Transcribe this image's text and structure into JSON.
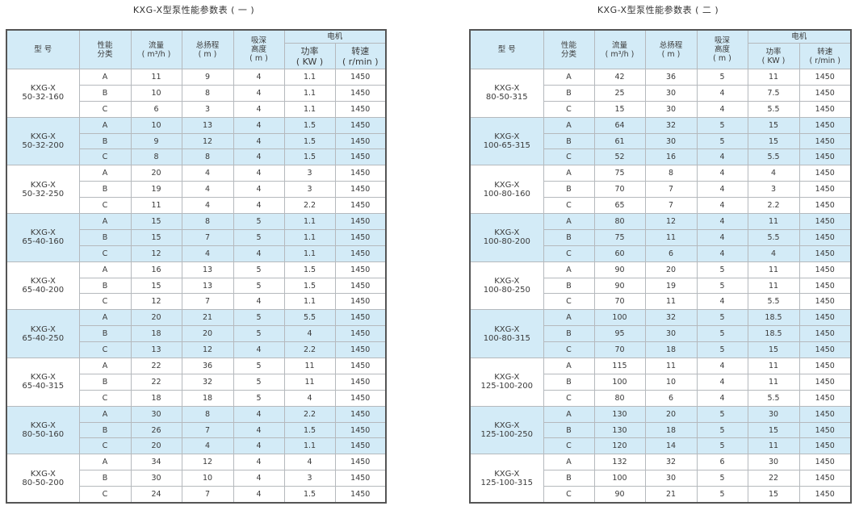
{
  "colors": {
    "header_bg": "#d3ebf7",
    "highlight_bg": "#d3ebf7",
    "border": "#b5b9bd",
    "outer_border": "#555555"
  },
  "headers": {
    "model": "型 号",
    "category": "性能\n分类",
    "flow": "流量\n( m³/h )",
    "head": "总扬程\n( m )",
    "suction": "吸深\n高度\n( m )",
    "motor": "电机",
    "power": "功率\n( KW )",
    "speed": "转速\n( r/min )"
  },
  "tables": [
    {
      "title": "KXG-X型泵性能参数表 ( 一 )",
      "groups": [
        {
          "model": "KXG-X\n50-32-160",
          "rows": [
            [
              "A",
              "11",
              "9",
              "4",
              "1.1",
              "1450"
            ],
            [
              "B",
              "10",
              "8",
              "4",
              "1.1",
              "1450"
            ],
            [
              "C",
              "6",
              "3",
              "4",
              "1.1",
              "1450"
            ]
          ]
        },
        {
          "model": "KXG-X\n50-32-200",
          "rows": [
            [
              "A",
              "10",
              "13",
              "4",
              "1.5",
              "1450"
            ],
            [
              "B",
              "9",
              "12",
              "4",
              "1.5",
              "1450"
            ],
            [
              "C",
              "8",
              "8",
              "4",
              "1.5",
              "1450"
            ]
          ]
        },
        {
          "model": "KXG-X\n50-32-250",
          "rows": [
            [
              "A",
              "20",
              "4",
              "4",
              "3",
              "1450"
            ],
            [
              "B",
              "19",
              "4",
              "4",
              "3",
              "1450"
            ],
            [
              "C",
              "11",
              "4",
              "4",
              "2.2",
              "1450"
            ]
          ]
        },
        {
          "model": "KXG-X\n65-40-160",
          "rows": [
            [
              "A",
              "15",
              "8",
              "5",
              "1.1",
              "1450"
            ],
            [
              "B",
              "15",
              "7",
              "5",
              "1.1",
              "1450"
            ],
            [
              "C",
              "12",
              "4",
              "4",
              "1.1",
              "1450"
            ]
          ]
        },
        {
          "model": "KXG-X\n65-40-200",
          "rows": [
            [
              "A",
              "16",
              "13",
              "5",
              "1.5",
              "1450"
            ],
            [
              "B",
              "15",
              "13",
              "5",
              "1.5",
              "1450"
            ],
            [
              "C",
              "12",
              "7",
              "4",
              "1.1",
              "1450"
            ]
          ]
        },
        {
          "model": "KXG-X\n65-40-250",
          "rows": [
            [
              "A",
              "20",
              "21",
              "5",
              "5.5",
              "1450"
            ],
            [
              "B",
              "18",
              "20",
              "5",
              "4",
              "1450"
            ],
            [
              "C",
              "13",
              "12",
              "4",
              "2.2",
              "1450"
            ]
          ]
        },
        {
          "model": "KXG-X\n65-40-315",
          "rows": [
            [
              "A",
              "22",
              "36",
              "5",
              "11",
              "1450"
            ],
            [
              "B",
              "22",
              "32",
              "5",
              "11",
              "1450"
            ],
            [
              "C",
              "18",
              "18",
              "5",
              "4",
              "1450"
            ]
          ]
        },
        {
          "model": "KXG-X\n80-50-160",
          "rows": [
            [
              "A",
              "30",
              "8",
              "4",
              "2.2",
              "1450"
            ],
            [
              "B",
              "26",
              "7",
              "4",
              "1.5",
              "1450"
            ],
            [
              "C",
              "20",
              "4",
              "4",
              "1.1",
              "1450"
            ]
          ]
        },
        {
          "model": "KXG-X\n80-50-200",
          "rows": [
            [
              "A",
              "34",
              "12",
              "4",
              "4",
              "1450"
            ],
            [
              "B",
              "30",
              "10",
              "4",
              "3",
              "1450"
            ],
            [
              "C",
              "24",
              "7",
              "4",
              "1.5",
              "1450"
            ]
          ]
        }
      ]
    },
    {
      "title": "KXG-X型泵性能参数表 ( 二 )",
      "groups": [
        {
          "model": "KXG-X\n80-50-315",
          "rows": [
            [
              "A",
              "42",
              "36",
              "5",
              "11",
              "1450"
            ],
            [
              "B",
              "25",
              "30",
              "4",
              "7.5",
              "1450"
            ],
            [
              "C",
              "15",
              "30",
              "4",
              "5.5",
              "1450"
            ]
          ]
        },
        {
          "model": "KXG-X\n100-65-315",
          "rows": [
            [
              "A",
              "64",
              "32",
              "5",
              "15",
              "1450"
            ],
            [
              "B",
              "61",
              "30",
              "5",
              "15",
              "1450"
            ],
            [
              "C",
              "52",
              "16",
              "4",
              "5.5",
              "1450"
            ]
          ]
        },
        {
          "model": "KXG-X\n100-80-160",
          "rows": [
            [
              "A",
              "75",
              "8",
              "4",
              "4",
              "1450"
            ],
            [
              "B",
              "70",
              "7",
              "4",
              "3",
              "1450"
            ],
            [
              "C",
              "65",
              "7",
              "4",
              "2.2",
              "1450"
            ]
          ]
        },
        {
          "model": "KXG-X\n100-80-200",
          "rows": [
            [
              "A",
              "80",
              "12",
              "4",
              "11",
              "1450"
            ],
            [
              "B",
              "75",
              "11",
              "4",
              "5.5",
              "1450"
            ],
            [
              "C",
              "60",
              "6",
              "4",
              "4",
              "1450"
            ]
          ]
        },
        {
          "model": "KXG-X\n100-80-250",
          "rows": [
            [
              "A",
              "90",
              "20",
              "5",
              "11",
              "1450"
            ],
            [
              "B",
              "90",
              "19",
              "5",
              "11",
              "1450"
            ],
            [
              "C",
              "70",
              "11",
              "4",
              "5.5",
              "1450"
            ]
          ]
        },
        {
          "model": "KXG-X\n100-80-315",
          "rows": [
            [
              "A",
              "100",
              "32",
              "5",
              "18.5",
              "1450"
            ],
            [
              "B",
              "95",
              "30",
              "5",
              "18.5",
              "1450"
            ],
            [
              "C",
              "70",
              "18",
              "5",
              "15",
              "1450"
            ]
          ]
        },
        {
          "model": "KXG-X\n125-100-200",
          "rows": [
            [
              "A",
              "115",
              "11",
              "4",
              "11",
              "1450"
            ],
            [
              "B",
              "100",
              "10",
              "4",
              "11",
              "1450"
            ],
            [
              "C",
              "80",
              "6",
              "4",
              "5.5",
              "1450"
            ]
          ]
        },
        {
          "model": "KXG-X\n125-100-250",
          "rows": [
            [
              "A",
              "130",
              "20",
              "5",
              "30",
              "1450"
            ],
            [
              "B",
              "130",
              "18",
              "5",
              "15",
              "1450"
            ],
            [
              "C",
              "120",
              "14",
              "5",
              "11",
              "1450"
            ]
          ]
        },
        {
          "model": "KXG-X\n125-100-315",
          "rows": [
            [
              "A",
              "132",
              "32",
              "6",
              "30",
              "1450"
            ],
            [
              "B",
              "100",
              "30",
              "5",
              "22",
              "1450"
            ],
            [
              "C",
              "90",
              "21",
              "5",
              "15",
              "1450"
            ]
          ]
        }
      ]
    }
  ]
}
